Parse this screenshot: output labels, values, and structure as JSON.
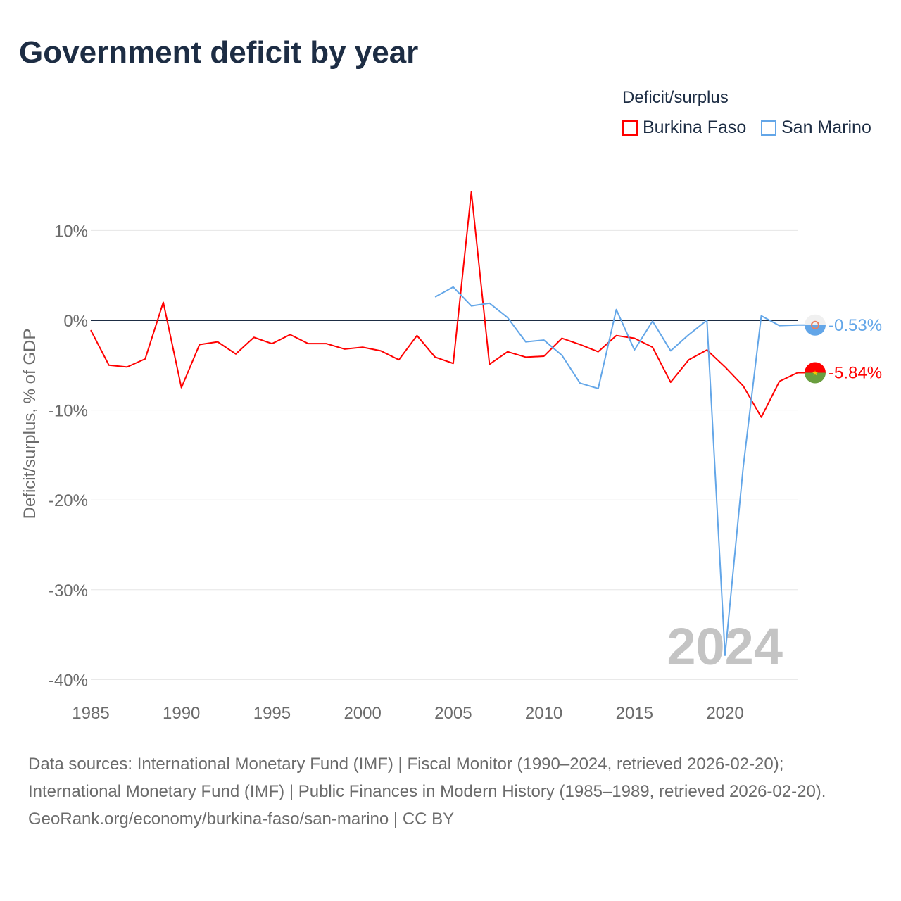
{
  "title": "Government deficit by year",
  "legend": {
    "title": "Deficit/surplus",
    "items": [
      {
        "label": "Burkina Faso",
        "color": "#ff0000"
      },
      {
        "label": "San Marino",
        "color": "#63a6e8"
      }
    ]
  },
  "footer": {
    "sources": "Data sources: International Monetary Fund (IMF) | Fiscal Monitor (1990–2024, retrieved 2026-02-20); International Monetary Fund (IMF) | Public Finances in Modern History (1985–1989, retrieved 2026-02-20).",
    "credit": "GeoRank.org/economy/burkina-faso/san-marino | CC BY"
  },
  "chart_data": {
    "type": "line",
    "title": "Government deficit by year",
    "ylabel": "Deficit/surplus, % of GDP",
    "xlabel": "",
    "ylim": [
      -40,
      15
    ],
    "xlim": [
      1985,
      2024
    ],
    "yticks": [
      10,
      0,
      -10,
      -20,
      -30,
      -40
    ],
    "ytick_labels": [
      "10%",
      "0%",
      "-10%",
      "-20%",
      "-30%",
      "-40%"
    ],
    "xticks": [
      1985,
      1990,
      1995,
      2000,
      2005,
      2010,
      2015,
      2020
    ],
    "xtick_labels": [
      "1985",
      "1990",
      "1995",
      "2000",
      "2005",
      "2010",
      "2015",
      "2020"
    ],
    "year_watermark": "2024",
    "series": [
      {
        "name": "Burkina Faso",
        "color": "#ff0000",
        "end_label": "-5.84%",
        "start": 1985,
        "values": [
          -1.1,
          -5.0,
          -5.2,
          -4.3,
          2.0,
          -7.5,
          -2.7,
          -2.4,
          -3.75,
          -1.9,
          -2.6,
          -1.6,
          -2.6,
          -2.6,
          -3.2,
          -3.0,
          -3.4,
          -4.4,
          -1.7,
          -4.1,
          -4.8,
          14.3,
          -4.9,
          -3.5,
          -4.1,
          -4.0,
          -2.0,
          -2.7,
          -3.5,
          -1.7,
          -2.0,
          -3.0,
          -6.9,
          -4.4,
          -3.3,
          -5.2,
          -7.3,
          -10.8,
          -6.8,
          -5.84
        ]
      },
      {
        "name": "San Marino",
        "color": "#63a6e8",
        "end_label": "-0.53%",
        "start": 2004,
        "values": [
          2.6,
          3.7,
          1.6,
          1.9,
          0.3,
          -2.4,
          -2.2,
          -3.9,
          -7.0,
          -7.6,
          1.2,
          -3.3,
          -0.1,
          -3.4,
          -1.6,
          0.0,
          -37.3,
          -16.4,
          0.5,
          -0.6,
          -0.53
        ]
      }
    ]
  }
}
